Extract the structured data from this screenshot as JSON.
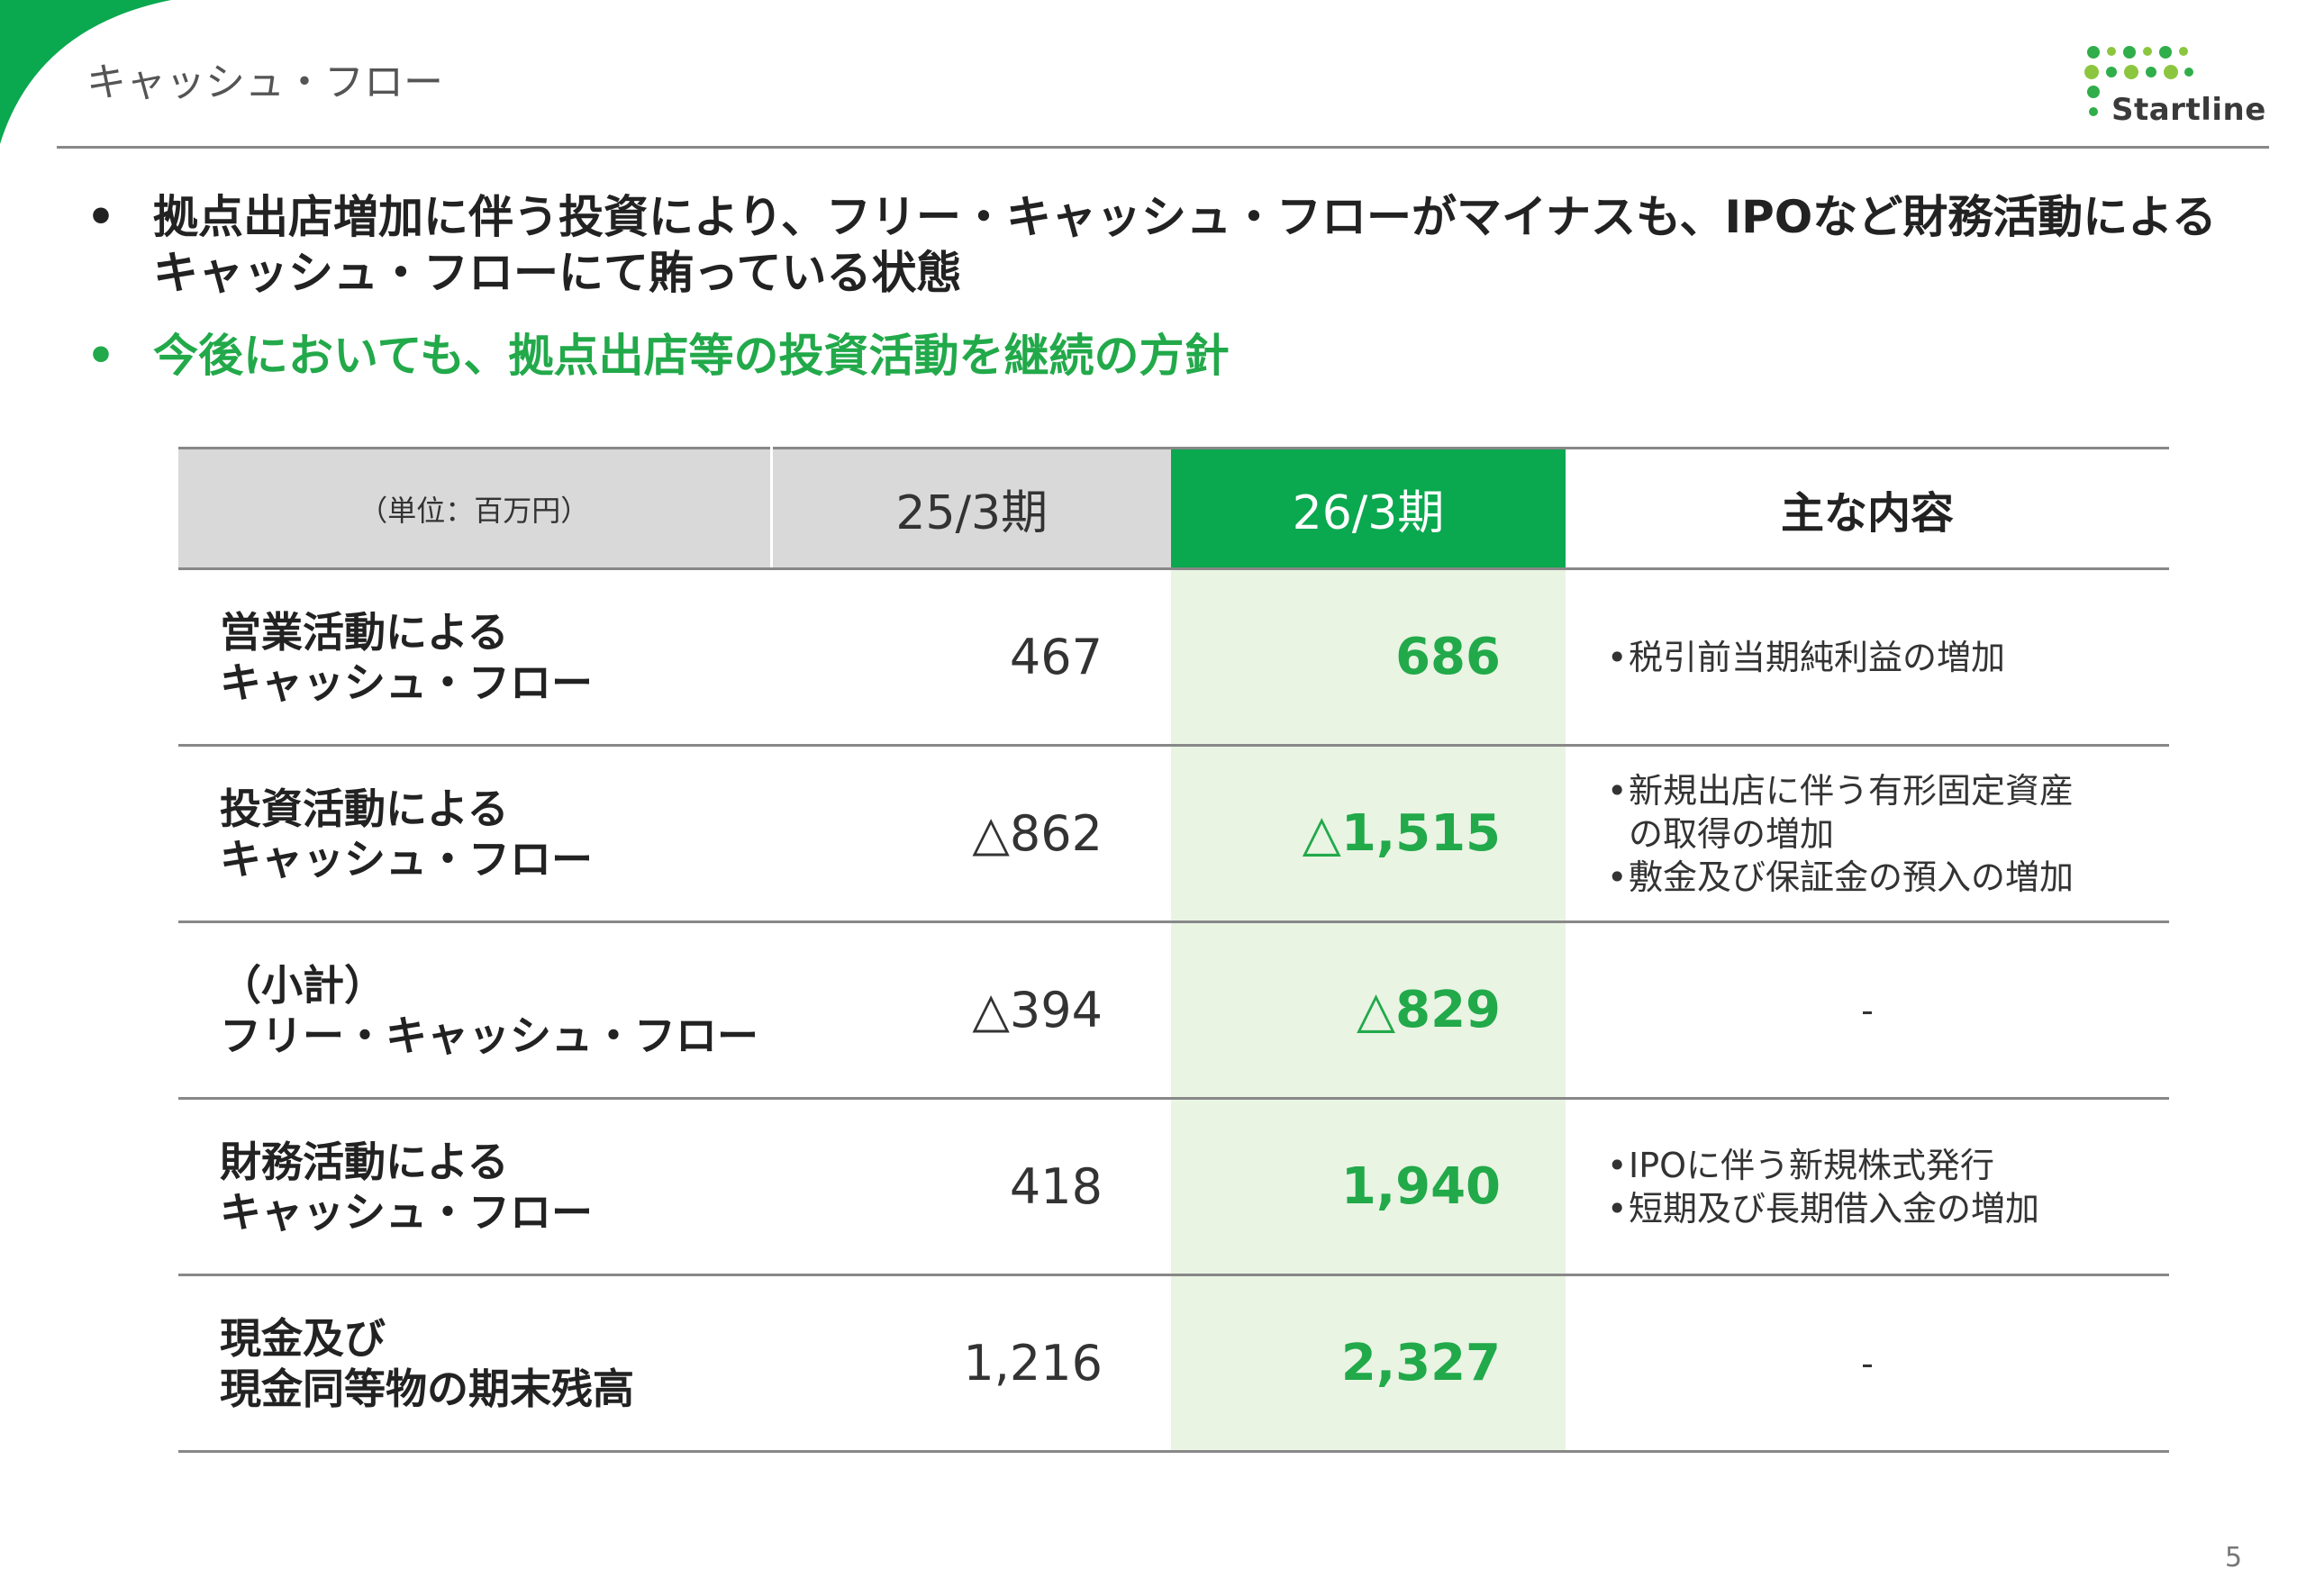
{
  "header": {
    "title": "キャッシュ・フロー",
    "logo_text": "Startline"
  },
  "bullets": [
    {
      "marker": "•",
      "text": "拠点出店増加に伴う投資により、フリー・キャッシュ・フローがマイナスも、IPOなど財務活動による キャッシュ・フローにて賄っている状態"
    },
    {
      "marker": "•",
      "text": "今後においても、拠点出店等の投資活動を継続の方針"
    }
  ],
  "table": {
    "unit_label": "（単位：百万円）",
    "col_prev": "25/3期",
    "col_cur": "26/3期",
    "col_note": "主な内容",
    "rows": [
      {
        "label_line1": "営業活動による",
        "label_line2": "キャッシュ・フロー",
        "prev": "467",
        "cur": "686",
        "notes": [
          {
            "marker": "•",
            "text": "税引前当期純利益の増加"
          }
        ]
      },
      {
        "label_line1": "投資活動による",
        "label_line2": "キャッシュ・フロー",
        "prev": "△862",
        "cur": "△1,515",
        "notes": [
          {
            "marker": "•",
            "text": "新規出店に伴う有形固定資産"
          },
          {
            "marker": "",
            "text": "の取得の増加"
          },
          {
            "marker": "•",
            "text": "敷金及び保証金の預入の増加"
          }
        ]
      },
      {
        "label_line1": "（小計）",
        "label_line2": "フリー・キャッシュ・フロー",
        "prev": "△394",
        "cur": "△829",
        "dash": "-"
      },
      {
        "label_line1": "財務活動による",
        "label_line2": "キャッシュ・フロー",
        "prev": "418",
        "cur": "1,940",
        "notes": [
          {
            "marker": "•",
            "text": "IPOに伴う新規株式発行"
          },
          {
            "marker": "•",
            "text": "短期及び長期借入金の増加"
          }
        ]
      },
      {
        "label_line1": "現金及び",
        "label_line2": "現金同等物の期末残高",
        "prev": "1,216",
        "cur": "2,327",
        "dash": "-"
      }
    ]
  },
  "page_number": "5",
  "colors": {
    "accent_green": "#22a94a",
    "header_green": "#0aa84f",
    "highlight_bg": "#e9f4e3",
    "header_gray": "#d9d9d9"
  },
  "icons": {
    "logo": "startline-dots-logo"
  }
}
